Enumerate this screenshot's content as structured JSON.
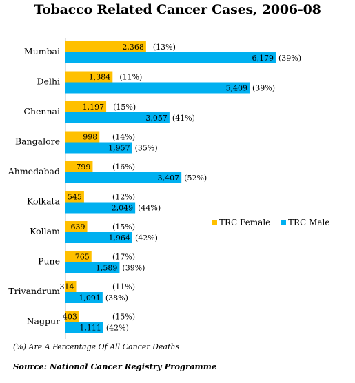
{
  "chart_data": {
    "type": "bar",
    "orientation": "horizontal",
    "title": "Tobacco Related Cancer Cases, 2006-08",
    "categories": [
      "Mumbai",
      "Delhi",
      "Chennai",
      "Bangalore",
      "Ahmedabad",
      "Kolkata",
      "Kollam",
      "Pune",
      "Trivandrum",
      "Nagpur"
    ],
    "series": [
      {
        "name": "TRC Female",
        "color": "#FFC000",
        "values": [
          2368,
          1384,
          1197,
          998,
          799,
          545,
          639,
          765,
          314,
          403
        ],
        "value_labels": [
          "2,368",
          "1,384",
          "1,197",
          "998",
          "799",
          "545",
          "639",
          "765",
          "314",
          "403"
        ],
        "pct_labels": [
          "(13%)",
          "(11%)",
          "(15%)",
          "(14%)",
          "(16%)",
          "(12%)",
          "(15%)",
          "(17%)",
          "(11%)",
          "(15%)"
        ]
      },
      {
        "name": "TRC Male",
        "color": "#00B0F0",
        "values": [
          6179,
          5409,
          3057,
          1957,
          3407,
          2049,
          1964,
          1589,
          1091,
          1111
        ],
        "value_labels": [
          "6,179",
          "5,409",
          "3,057",
          "1,957",
          "3,407",
          "2,049",
          "1,964",
          "1,589",
          "1,091",
          "1,111"
        ],
        "pct_labels": [
          "(39%)",
          "(39%)",
          "(41%)",
          "(35%)",
          "(52%)",
          "(44%)",
          "(42%)",
          "(39%)",
          "(38%)",
          "(42%)"
        ]
      }
    ],
    "xlim": [
      0,
      6179
    ],
    "grid": false,
    "legend_position": "right",
    "footnote": "(%) Are A Percentage Of All Cancer Deaths",
    "source": "Source: National Cancer Registry Programme"
  }
}
